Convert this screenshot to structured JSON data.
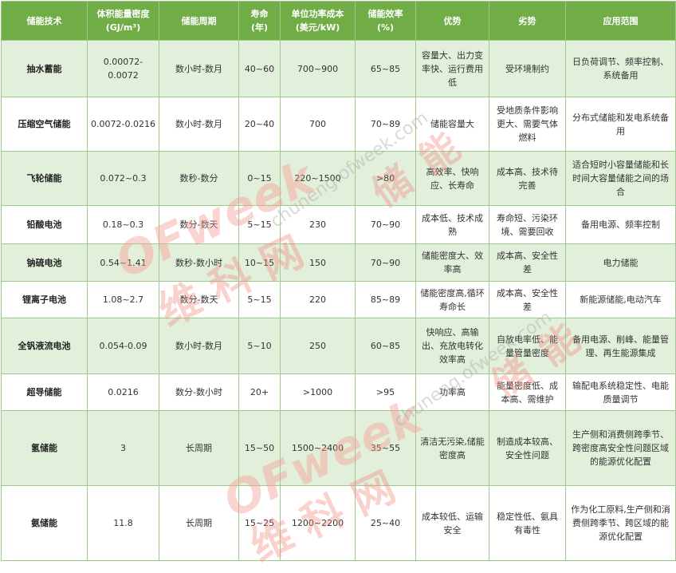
{
  "headers": [
    "储能技术",
    "体积能量密度\n(GJ/m³)",
    "储能周期",
    "寿命\n(年)",
    "单位功率成本\n(美元/kW)",
    "储能效率\n(%)",
    "优势",
    "劣势",
    "应用范围"
  ],
  "rows": [
    [
      "抽水蓄能",
      "0.00072-0.0072",
      "数小时-数月",
      "40~60",
      "700~900",
      "65~85",
      "容量大、出力变率快、运行费用低",
      "受环境制约",
      "日负荷调节、频率控制、系统备用"
    ],
    [
      "压缩空气储能",
      "0.0072-0.0216",
      "数小时-数月",
      "20~40",
      "700",
      "70~89",
      "储能容量大",
      "受地质条件影响更大、需要气体燃料",
      "分布式储能和发电系统备用"
    ],
    [
      "飞轮储能",
      "0.072~0.3",
      "数秒-数分",
      "0~15",
      "220~1500",
      ">80",
      "高效率、快响应、长寿命",
      "成本高、技术待完善",
      "适合短时小容量储能和长时间大容量储能之间的场合"
    ],
    [
      "铅酸电池",
      "0.18~0.3",
      "数分-数天",
      "5~15",
      "230",
      "70~90",
      "成本低、技术成熟",
      "寿命短、污染环境、需要回收",
      "备用电源、频率控制"
    ],
    [
      "钠硫电池",
      "0.54~1.41",
      "数秒-数小时",
      "10~15",
      "150",
      "70~90",
      "储能密度大、效率高",
      "成本高、安全性差",
      "电力储能"
    ],
    [
      "锂离子电池",
      "1.08~2.7",
      "数分-数天",
      "5~15",
      "220",
      "85~89",
      "储能密度高,循环寿命长",
      "成本高、安全性差",
      "新能源储能,电动汽车"
    ],
    [
      "全钒液流电池",
      "0.054-0.09",
      "数小时-数月",
      "5~10",
      "250",
      "60~85",
      "快响应、高输出、充放电转化效率高",
      "自放电率低、能量管量密度",
      "备用电源、削峰、能量管理、再生能源集成"
    ],
    [
      "超导储能",
      "0.0216",
      "数分-数小时",
      "20+",
      ">1000",
      ">95",
      "功率高",
      "能量密度低、成本高、需维护",
      "输配电系统稳定性、电能质量调节"
    ],
    [
      "氢储能",
      "3",
      "长周期",
      "15~50",
      "1500~2400",
      "35~55",
      "清洁无污染,储能密度高",
      "制造成本较高、安全性问题",
      "生产侧和消费侧跨季节、跨密度高安全性问题区域的能源优化配置"
    ],
    [
      "氨储能",
      "11.8",
      "长周期",
      "15~25",
      "1200~2200",
      "25~40",
      "成本较低、运输安全",
      "稳定性低、氨具有毒性",
      "作为化工原料,生产侧和消费侧跨季节、跨区域的能源优化配置"
    ]
  ],
  "watermark": {
    "logo": "OFweek",
    "cn": "维科网",
    "url": "chuneng.ofweek.com",
    "big": "储能"
  }
}
